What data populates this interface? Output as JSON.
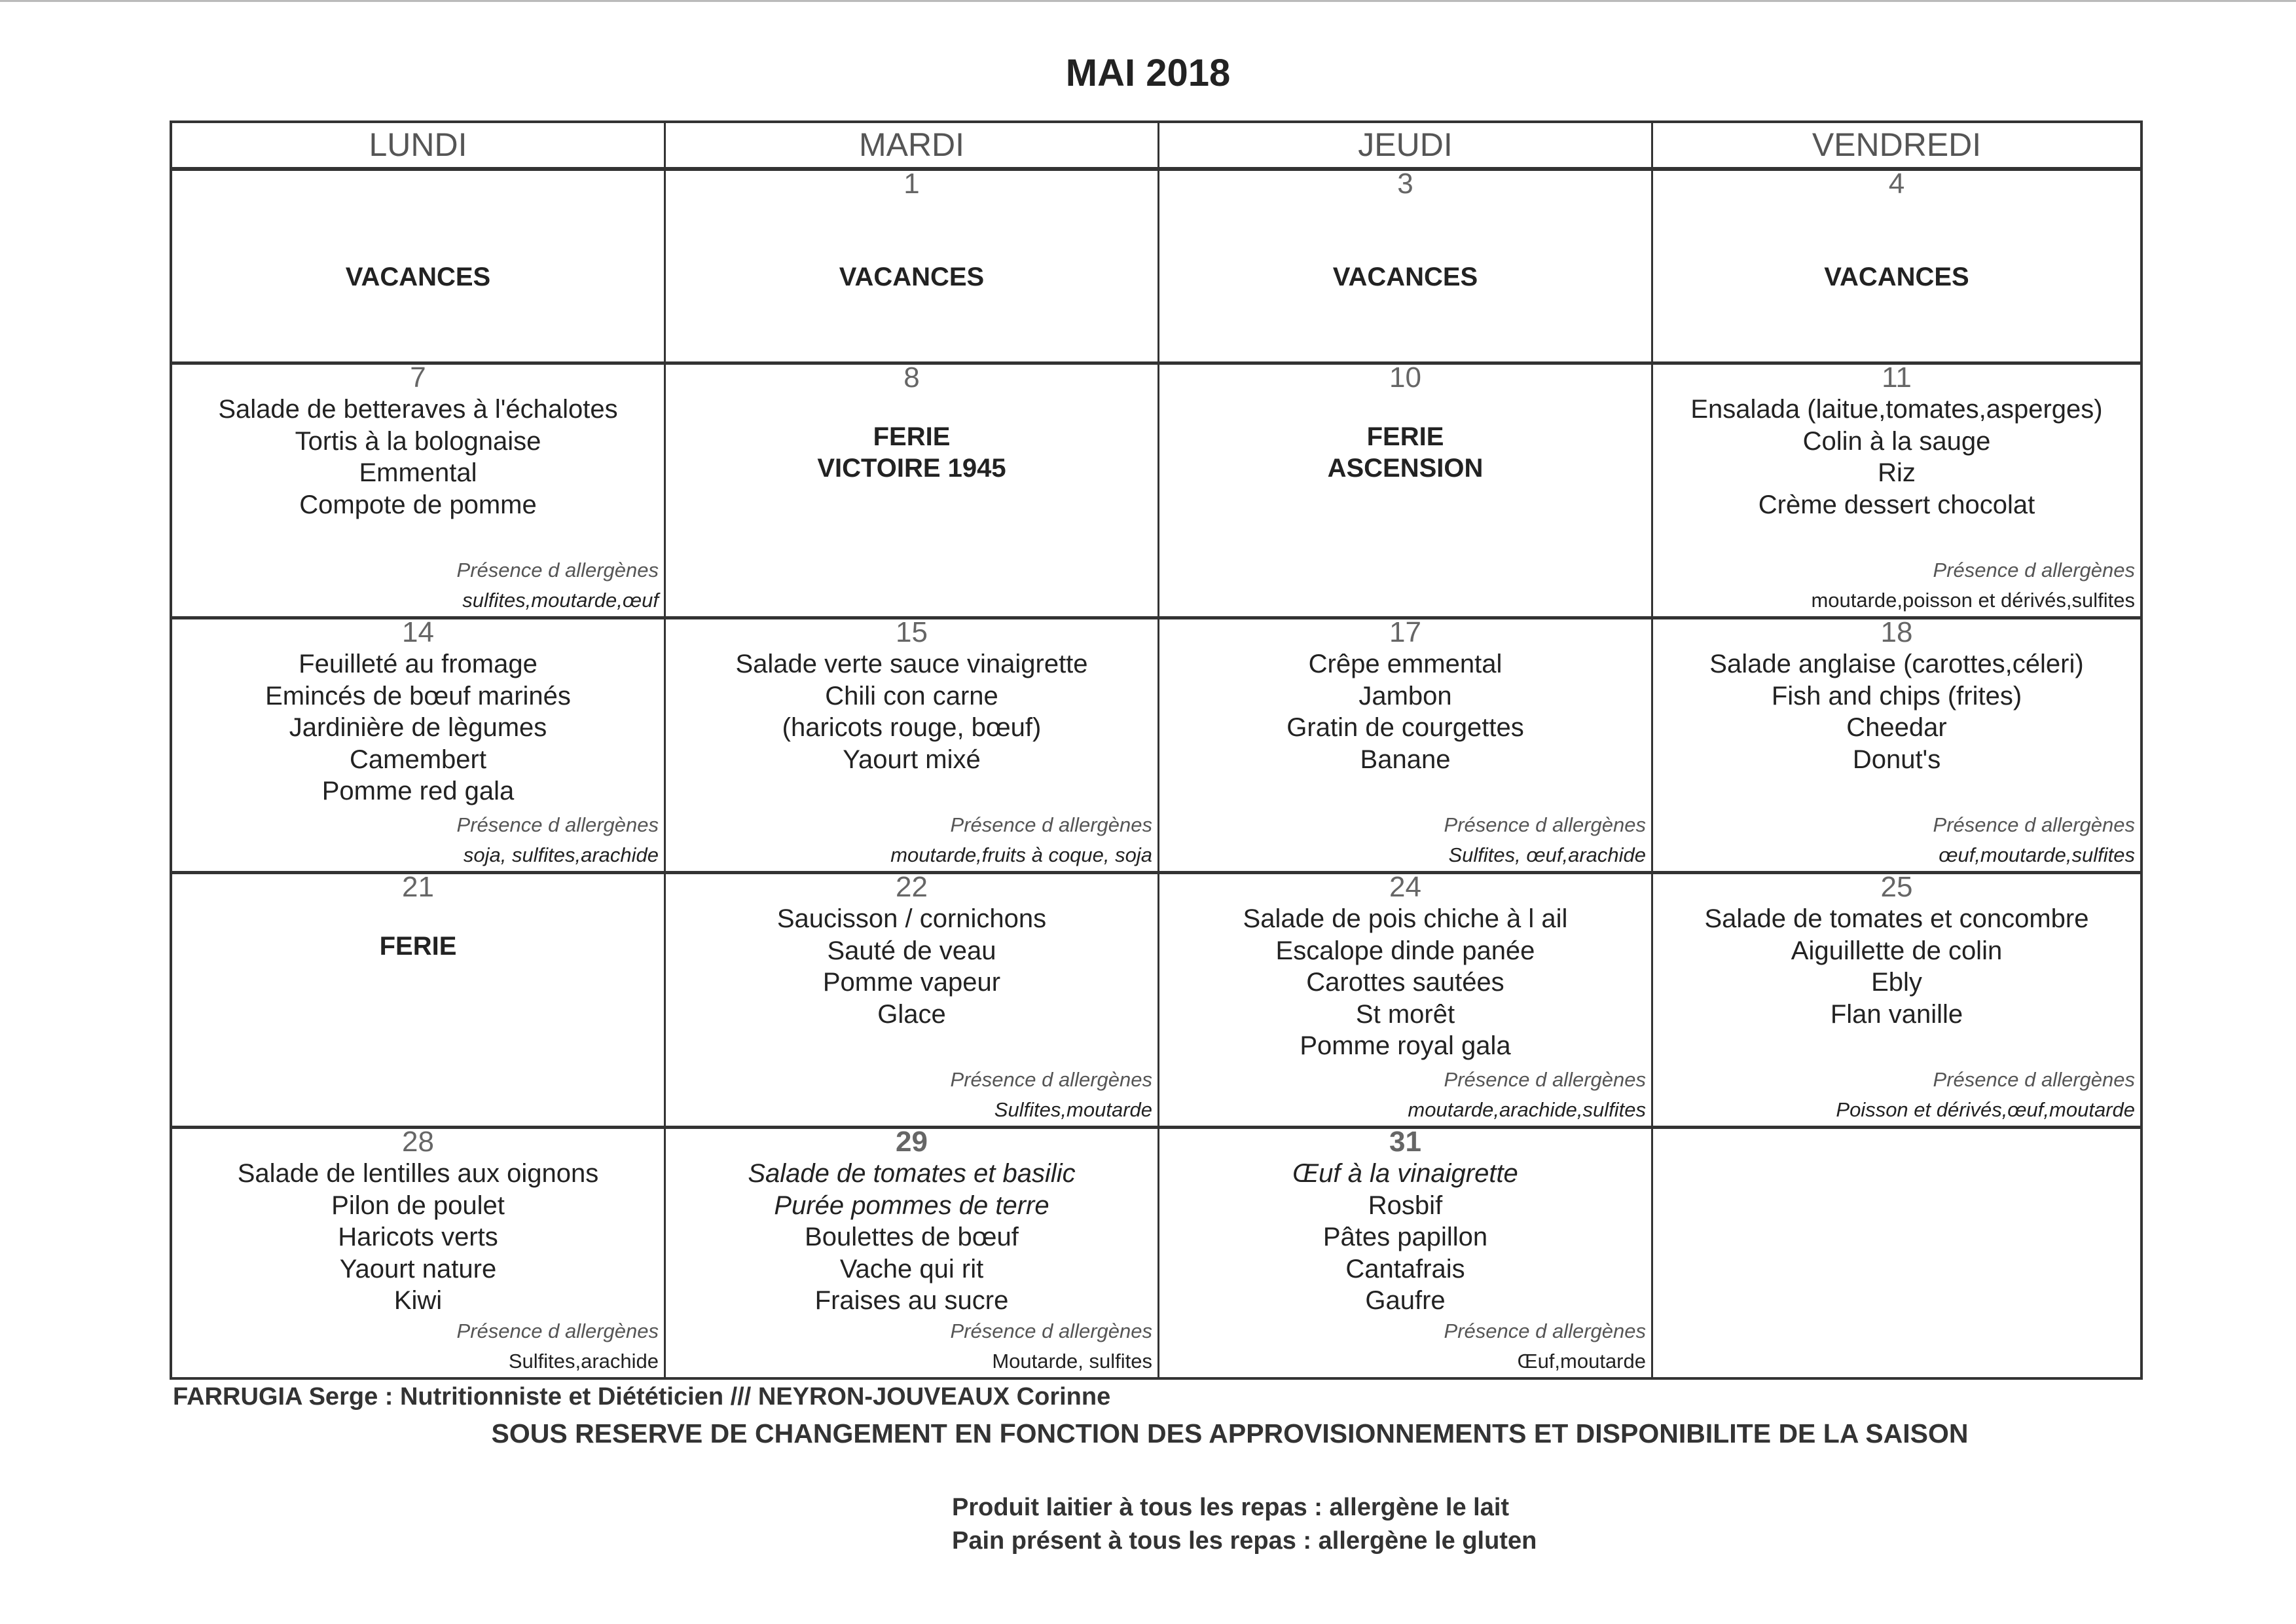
{
  "title": "MAI 2018",
  "headers": [
    "LUNDI",
    "MARDI",
    "JEUDI",
    "VENDREDI"
  ],
  "allergen_label": "Présence d allergènes",
  "rows": [
    [
      {
        "day": "",
        "vacances": "VACANCES"
      },
      {
        "day": "1",
        "vacances": "VACANCES"
      },
      {
        "day": "3",
        "vacances": "VACANCES"
      },
      {
        "day": "4",
        "vacances": "VACANCES"
      }
    ],
    [
      {
        "day": "7",
        "items": [
          {
            "text": "Salade de betteraves à l'échalotes"
          },
          {
            "text": "Tortis à la bolognaise"
          },
          {
            "text": "Emmental"
          },
          {
            "text": "Compote de pomme"
          }
        ],
        "allergens": "sulfites,moutarde,œuf"
      },
      {
        "day": "8",
        "special": [
          "FERIE",
          "VICTOIRE 1945"
        ]
      },
      {
        "day": "10",
        "special": [
          "FERIE",
          "ASCENSION"
        ]
      },
      {
        "day": "11",
        "items": [
          {
            "text": "Ensalada (laitue,tomates,asperges)"
          },
          {
            "text": "Colin à la sauge"
          },
          {
            "text": "Riz"
          },
          {
            "text": "Crème dessert chocolat"
          }
        ],
        "allergens": "moutarde,poisson et dérivés,sulfites",
        "allergens_upright": true
      }
    ],
    [
      {
        "day": "14",
        "items": [
          {
            "text": "Feuilleté au fromage"
          },
          {
            "text": "Emincés de bœuf marinés"
          },
          {
            "text": "Jardinière de lègumes"
          },
          {
            "text": "Camembert"
          },
          {
            "text": "Pomme red gala"
          }
        ],
        "allergens": "soja, sulfites,arachide"
      },
      {
        "day": "15",
        "items": [
          {
            "text": "Salade verte sauce vinaigrette"
          },
          {
            "text": "Chili con carne"
          },
          {
            "text": "(haricots rouge, bœuf)"
          },
          {
            "text": "Yaourt mixé"
          }
        ],
        "allergens": "moutarde,fruits à coque, soja"
      },
      {
        "day": "17",
        "items": [
          {
            "text": "Crêpe emmental"
          },
          {
            "text": "Jambon"
          },
          {
            "text": "Gratin de courgettes"
          },
          {
            "text": "Banane"
          }
        ],
        "allergens": "Sulfites, œuf,arachide"
      },
      {
        "day": "18",
        "items": [
          {
            "text": "Salade anglaise (carottes,céleri)"
          },
          {
            "text": "Fish and chips (frites)"
          },
          {
            "text": "Cheedar"
          },
          {
            "text": "Donut's"
          }
        ],
        "allergens": "œuf,moutarde,sulfites"
      }
    ],
    [
      {
        "day": "21",
        "special": [
          "FERIE"
        ]
      },
      {
        "day": "22",
        "items": [
          {
            "text": "Saucisson / cornichons"
          },
          {
            "text": "Sauté de veau"
          },
          {
            "text": "Pomme vapeur"
          },
          {
            "text": "Glace"
          }
        ],
        "allergens": "Sulfites,moutarde"
      },
      {
        "day": "24",
        "items": [
          {
            "text": "Salade de pois chiche à l ail"
          },
          {
            "text": "Escalope dinde panée"
          },
          {
            "text": "Carottes sautées"
          },
          {
            "text": "St morêt"
          },
          {
            "text": "Pomme royal gala"
          }
        ],
        "allergens": "moutarde,arachide,sulfites"
      },
      {
        "day": "25",
        "items": [
          {
            "text": "Salade de tomates et concombre"
          },
          {
            "text": "Aiguillette de colin"
          },
          {
            "text": "Ebly"
          },
          {
            "text": "Flan vanille"
          }
        ],
        "allergens": "Poisson et dérivés,œuf,moutarde"
      }
    ],
    [
      {
        "day": "28",
        "items": [
          {
            "text": "Salade de lentilles aux oignons"
          },
          {
            "text": "Pilon de poulet"
          },
          {
            "text": "Haricots verts"
          },
          {
            "text": "Yaourt nature"
          },
          {
            "text": "Kiwi"
          }
        ],
        "allergens": "Sulfites,arachide",
        "allergens_upright": true
      },
      {
        "day": "29",
        "day_bold": true,
        "items": [
          {
            "text": "Salade de tomates et basilic",
            "italic": true
          },
          {
            "text": "Purée pommes de terre",
            "italic": true
          },
          {
            "text": "Boulettes de bœuf"
          },
          {
            "text": "Vache qui rit"
          },
          {
            "text": "Fraises au sucre"
          }
        ],
        "allergens": "Moutarde, sulfites",
        "allergens_upright": true
      },
      {
        "day": "31",
        "day_bold": true,
        "items": [
          {
            "text": "Œuf à la vinaigrette",
            "italic": true
          },
          {
            "text": "Rosbif"
          },
          {
            "text": "Pâtes papillon"
          },
          {
            "text": "Cantafrais"
          },
          {
            "text": "Gaufre"
          }
        ],
        "allergens": "Œuf,moutarde",
        "allergens_upright": true
      },
      {
        "day": ""
      }
    ]
  ],
  "footer": {
    "authors": "FARRUGIA Serge : Nutritionniste et Diététicien /// NEYRON-JOUVEAUX Corinne",
    "disclaimer": "SOUS RESERVE DE CHANGEMENT EN FONCTION DES APPROVISIONNEMENTS ET DISPONIBILITE DE LA SAISON",
    "note_dairy": "Produit laitier à tous les repas : allergène le lait",
    "note_bread": "Pain présent à tous les repas : allergène le gluten"
  }
}
